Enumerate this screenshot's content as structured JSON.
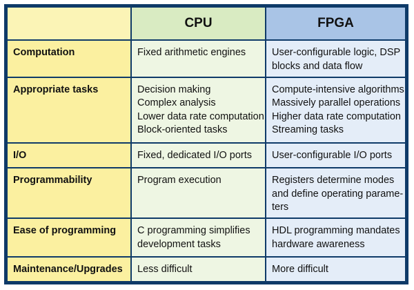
{
  "header": {
    "corner": "",
    "cpu": "CPU",
    "fpga": "FPGA"
  },
  "rows": [
    {
      "label": "Computation",
      "cpu": [
        "Fixed arithmetic engines"
      ],
      "fpga": [
        "User-configurable logic, DSP",
        "blocks and data flow"
      ]
    },
    {
      "label": "Appropriate tasks",
      "cpu": [
        "Decision making",
        "Complex analysis",
        "Lower data rate computation",
        "Block-oriented tasks"
      ],
      "fpga": [
        "Compute-intensive algorithms",
        "Massively parallel operations",
        "Higher data rate computation",
        "Streaming tasks"
      ]
    },
    {
      "label": "I/O",
      "cpu": [
        "Fixed, dedicated I/O ports"
      ],
      "fpga": [
        "User-configurable I/O ports"
      ]
    },
    {
      "label": "Programmability",
      "cpu": [
        "Program execution"
      ],
      "fpga": [
        "Registers determine modes",
        "and define operating parame-",
        "ters"
      ]
    },
    {
      "label": "Ease of programming",
      "cpu": [
        "C programming simplifies",
        "development tasks"
      ],
      "fpga": [
        "HDL programming mandates",
        "hardware awareness"
      ]
    },
    {
      "label": "Maintenance/Upgrades",
      "cpu": [
        "Less difficult"
      ],
      "fpga": [
        "More difficult"
      ]
    }
  ]
}
